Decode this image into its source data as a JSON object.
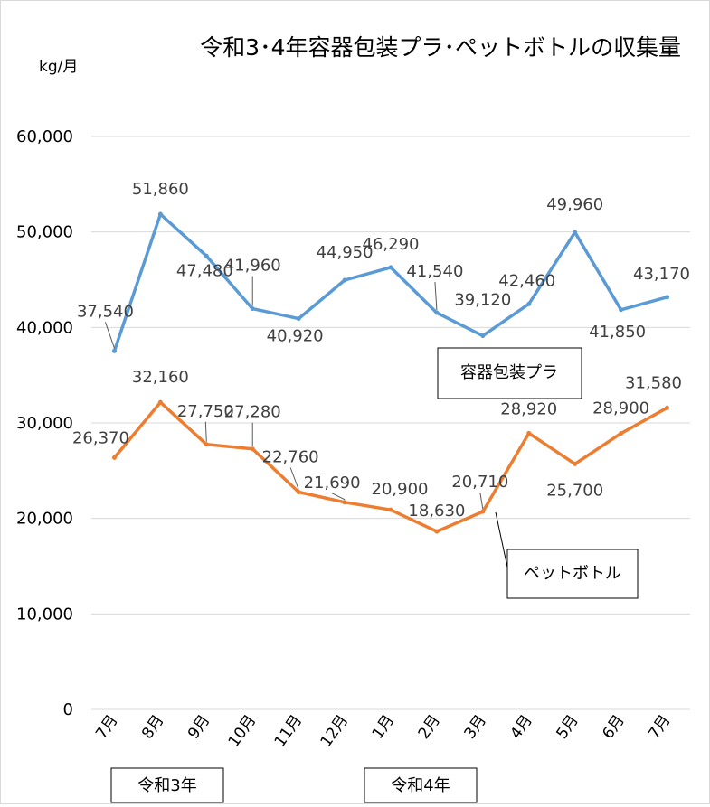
{
  "chart_data": {
    "type": "line",
    "title": "令和3･4年容器包装プラ･ペットボトルの収集量",
    "ylabel": "kg/月",
    "ylim": [
      0,
      60000
    ],
    "yticks": [
      "0",
      "10,000",
      "20,000",
      "30,000",
      "40,000",
      "50,000",
      "60,000"
    ],
    "categories": [
      "7月",
      "8月",
      "9月",
      "10月",
      "11月",
      "12月",
      "1月",
      "2月",
      "3月",
      "4月",
      "5月",
      "6月",
      "7月"
    ],
    "grid": true,
    "series": [
      {
        "name": "容器包装プラ",
        "color": "#5b9bd5",
        "values": [
          37540,
          51860,
          47480,
          41960,
          40920,
          44950,
          46290,
          41540,
          39120,
          42460,
          49960,
          41850,
          43170
        ],
        "labels": [
          "37,540",
          "51,860",
          "47,480",
          "41,960",
          "40,920",
          "44,950",
          "46,290",
          "41,540",
          "39,120",
          "42,460",
          "49,960",
          "41,850",
          "43,170"
        ]
      },
      {
        "name": "ペットボトル",
        "color": "#ed7d31",
        "values": [
          26370,
          32160,
          27750,
          27280,
          22760,
          21690,
          20900,
          18630,
          20710,
          28920,
          25700,
          28900,
          31580
        ],
        "labels": [
          "26,370",
          "32,160",
          "27,750",
          "27,280",
          "22,760",
          "21,690",
          "20,900",
          "18,630",
          "20,710",
          "28,920",
          "25,700",
          "28,900",
          "31,580"
        ]
      }
    ],
    "year_labels": [
      "令和3年",
      "令和4年"
    ]
  }
}
